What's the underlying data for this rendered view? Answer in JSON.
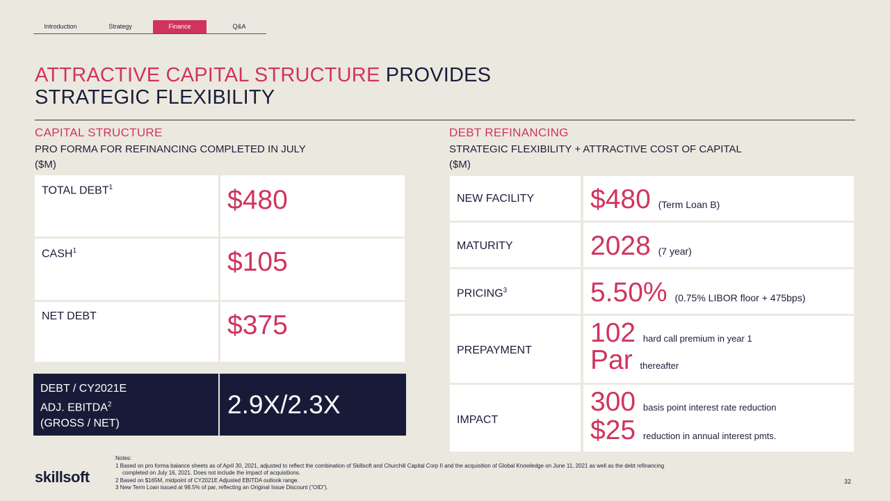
{
  "nav": {
    "tabs": [
      {
        "label": "Introduction"
      },
      {
        "label": "Strategy"
      },
      {
        "label": "Finance"
      },
      {
        "label": "Q&A"
      }
    ]
  },
  "title": {
    "accent": "ATTRACTIVE CAPITAL STRUCTURE",
    "rest_line1": " PROVIDES",
    "line2": "STRATEGIC FLEXIBILITY"
  },
  "left": {
    "heading": "CAPITAL STRUCTURE",
    "subheading_line1": "PRO FORMA FOR REFINANCING COMPLETED IN JULY",
    "subheading_line2": "($M)",
    "rows": [
      {
        "label": "TOTAL DEBT",
        "sup": "1",
        "value": "$480"
      },
      {
        "label": "CASH",
        "sup": "1",
        "value": "$105"
      },
      {
        "label": "NET DEBT",
        "sup": "",
        "value": "$375"
      }
    ],
    "ratio": {
      "label_line1": "DEBT / CY2021E",
      "label_line2": "ADJ. EBITDA",
      "label_line2_sup": "2",
      "label_line3": "(GROSS / NET)",
      "value": "2.9X/2.3X"
    }
  },
  "right": {
    "heading": "DEBT REFINANCING",
    "subheading_line1": "STRATEGIC FLEXIBILITY + ATTRACTIVE COST OF CAPITAL",
    "subheading_line2": "($M)",
    "rows": [
      {
        "label": "NEW FACILITY",
        "sup": "",
        "value": "$480",
        "note": "(Term Loan B)"
      },
      {
        "label": "MATURITY",
        "sup": "",
        "value": "2028",
        "note": "(7 year)"
      },
      {
        "label": "PRICING",
        "sup": "3",
        "value": "5.50%",
        "note": "(0.75% LIBOR floor + 475bps)"
      },
      {
        "label": "PREPAYMENT",
        "sup": "",
        "value": "102",
        "note": "hard call premium in year 1",
        "value2": "Par",
        "note2": "thereafter"
      },
      {
        "label": "IMPACT",
        "sup": "",
        "value": "300",
        "note": "basis point interest rate reduction",
        "value2": "$25",
        "note2": "reduction in annual interest pmts."
      }
    ]
  },
  "notes": {
    "header": "Notes:",
    "n1": "1 Based on pro forma balance sheets as of April 30, 2021, adjusted to reflect the combination of Skillsoft and Churchill Capital Corp II and the acquisition of Global Knowledge on June 11, 2021 as well as the debt refinancing",
    "n1b": "completed on July 16, 2021. Does not include the impact of acquisitions.",
    "n2": "2 Based on $165M, midpoint of CY2021E Adjusted EBITDA outlook range.",
    "n3": "3 New Term Loan issued at 98.5% of par, reflecting an Original Issue Discount (“OID”)."
  },
  "footer": {
    "logo": "skillsoft",
    "page": "32"
  },
  "colors": {
    "accent": "#d0345e",
    "navy": "#181b38",
    "background": "#ebe9df"
  }
}
